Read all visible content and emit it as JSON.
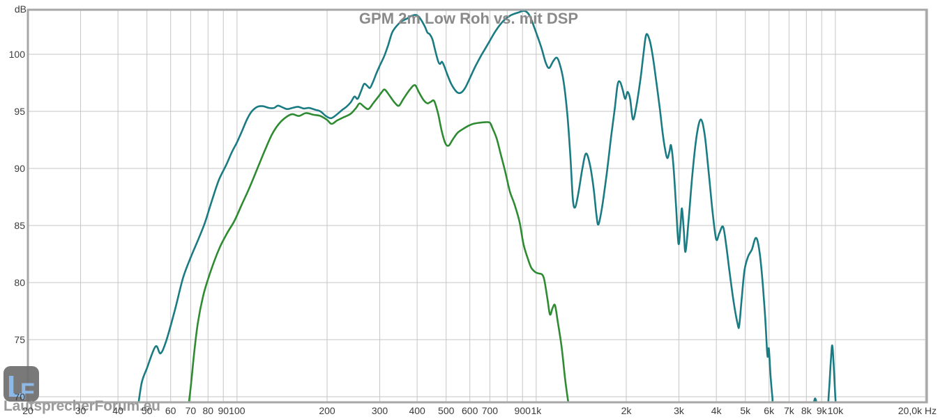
{
  "chart_data": {
    "type": "line",
    "title": "GPM 2m Low Roh vs. mit DSP",
    "ylabel": "dB",
    "xlabel": "Hz",
    "x_scale": "log",
    "x_range_hz": [
      20,
      20000
    ],
    "y_range_db": [
      69.5,
      104
    ],
    "grid": true,
    "legend_position": "none",
    "y_ticks_db": [
      100,
      95,
      90,
      85,
      80,
      75,
      70
    ],
    "x_ticks": [
      {
        "label": "20",
        "hz": 20
      },
      {
        "label": "30",
        "hz": 30
      },
      {
        "label": "40",
        "hz": 40
      },
      {
        "label": "50",
        "hz": 50
      },
      {
        "label": "60",
        "hz": 60
      },
      {
        "label": "70",
        "hz": 70
      },
      {
        "label": "80",
        "hz": 80
      },
      {
        "label": "90",
        "hz": 90
      },
      {
        "label": "100",
        "hz": 100
      },
      {
        "label": "200",
        "hz": 200
      },
      {
        "label": "300",
        "hz": 300
      },
      {
        "label": "400",
        "hz": 400
      },
      {
        "label": "500",
        "hz": 500
      },
      {
        "label": "600",
        "hz": 600
      },
      {
        "label": "700",
        "hz": 700
      },
      {
        "label": "900",
        "hz": 900
      },
      {
        "label": "1k",
        "hz": 1000
      },
      {
        "label": "2k",
        "hz": 2000
      },
      {
        "label": "3k",
        "hz": 3000
      },
      {
        "label": "4k",
        "hz": 4000
      },
      {
        "label": "5k",
        "hz": 5000
      },
      {
        "label": "6k",
        "hz": 6000
      },
      {
        "label": "7k",
        "hz": 7000
      },
      {
        "label": "8k",
        "hz": 8000
      },
      {
        "label": "9k",
        "hz": 9000
      },
      {
        "label": "10k",
        "hz": 10000
      },
      {
        "label": "20,0k Hz",
        "hz": 20000
      }
    ],
    "grid_freqs_hz": [
      20,
      30,
      40,
      50,
      60,
      70,
      80,
      90,
      100,
      200,
      300,
      400,
      500,
      600,
      700,
      800,
      900,
      1000,
      2000,
      3000,
      4000,
      5000,
      6000,
      7000,
      8000,
      9000,
      10000,
      20000
    ],
    "series": [
      {
        "id": "teal",
        "color": "#1a7b83",
        "points_hz_db": [
          [
            46.5,
            68.8
          ],
          [
            48,
            71.2
          ],
          [
            50,
            72.5
          ],
          [
            53.4,
            74.4
          ],
          [
            55.5,
            73.8
          ],
          [
            58,
            74.9
          ],
          [
            62,
            77.6
          ],
          [
            66,
            80.4
          ],
          [
            70,
            82.2
          ],
          [
            74,
            83.7
          ],
          [
            78,
            85.2
          ],
          [
            82,
            87.0
          ],
          [
            87,
            89.0
          ],
          [
            92,
            90.3
          ],
          [
            96,
            91.4
          ],
          [
            100,
            92.3
          ],
          [
            104,
            93.3
          ],
          [
            108,
            94.3
          ],
          [
            112,
            95.0
          ],
          [
            117,
            95.4
          ],
          [
            122,
            95.45
          ],
          [
            128,
            95.3
          ],
          [
            133,
            95.3
          ],
          [
            137,
            95.5
          ],
          [
            142,
            95.35
          ],
          [
            147,
            95.2
          ],
          [
            153,
            95.3
          ],
          [
            160,
            95.4
          ],
          [
            167,
            95.25
          ],
          [
            174,
            95.3
          ],
          [
            182,
            95.15
          ],
          [
            190,
            95.0
          ],
          [
            198,
            94.6
          ],
          [
            206,
            94.4
          ],
          [
            215,
            94.7
          ],
          [
            224,
            95.1
          ],
          [
            232,
            95.4
          ],
          [
            240,
            95.8
          ],
          [
            247,
            96.3
          ],
          [
            253,
            96.1
          ],
          [
            260,
            96.8
          ],
          [
            266,
            97.4
          ],
          [
            272,
            97.25
          ],
          [
            278,
            97.05
          ],
          [
            284,
            97.5
          ],
          [
            292,
            98.3
          ],
          [
            300,
            99.0
          ],
          [
            310,
            99.8
          ],
          [
            320,
            100.8
          ],
          [
            330,
            101.9
          ],
          [
            342,
            102.5
          ],
          [
            355,
            102.9
          ],
          [
            368,
            103.1
          ],
          [
            382,
            103.35
          ],
          [
            395,
            103.45
          ],
          [
            405,
            103.3
          ],
          [
            415,
            102.9
          ],
          [
            425,
            102.4
          ],
          [
            433,
            101.9
          ],
          [
            441,
            101.75
          ],
          [
            450,
            101.3
          ],
          [
            460,
            100.3
          ],
          [
            470,
            99.4
          ],
          [
            477,
            99.15
          ],
          [
            484,
            99.35
          ],
          [
            492,
            99.0
          ],
          [
            505,
            98.2
          ],
          [
            520,
            97.4
          ],
          [
            538,
            96.8
          ],
          [
            552,
            96.6
          ],
          [
            565,
            96.7
          ],
          [
            580,
            97.1
          ],
          [
            600,
            97.9
          ],
          [
            625,
            98.9
          ],
          [
            655,
            99.9
          ],
          [
            690,
            100.9
          ],
          [
            730,
            102.0
          ],
          [
            775,
            102.9
          ],
          [
            820,
            103.4
          ],
          [
            870,
            103.65
          ],
          [
            915,
            103.8
          ],
          [
            950,
            103.4
          ],
          [
            990,
            102.2
          ],
          [
            1040,
            100.6
          ],
          [
            1075,
            99.3
          ],
          [
            1104,
            98.8
          ],
          [
            1140,
            99.4
          ],
          [
            1172,
            99.7
          ],
          [
            1200,
            99.1
          ],
          [
            1235,
            97.6
          ],
          [
            1270,
            94.8
          ],
          [
            1300,
            91.2
          ],
          [
            1326,
            87.3
          ],
          [
            1350,
            86.6
          ],
          [
            1385,
            87.9
          ],
          [
            1425,
            89.9
          ],
          [
            1466,
            91.3
          ],
          [
            1510,
            90.4
          ],
          [
            1555,
            88.3
          ],
          [
            1590,
            85.9
          ],
          [
            1615,
            85.1
          ],
          [
            1660,
            86.6
          ],
          [
            1720,
            89.5
          ],
          [
            1780,
            92.8
          ],
          [
            1830,
            95.2
          ],
          [
            1870,
            97.3
          ],
          [
            1905,
            97.6
          ],
          [
            1945,
            96.9
          ],
          [
            1983,
            96.1
          ],
          [
            2020,
            96.7
          ],
          [
            2060,
            96.1
          ],
          [
            2105,
            94.3
          ],
          [
            2160,
            95.4
          ],
          [
            2230,
            97.8
          ],
          [
            2280,
            99.9
          ],
          [
            2330,
            101.7
          ],
          [
            2390,
            101.3
          ],
          [
            2450,
            99.9
          ],
          [
            2520,
            97.6
          ],
          [
            2590,
            95.2
          ],
          [
            2650,
            93.0
          ],
          [
            2700,
            91.6
          ],
          [
            2745,
            90.9
          ],
          [
            2790,
            91.5
          ],
          [
            2825,
            92.0
          ],
          [
            2880,
            90.0
          ],
          [
            2935,
            86.6
          ],
          [
            2990,
            83.4
          ],
          [
            3035,
            84.9
          ],
          [
            3070,
            86.5
          ],
          [
            3115,
            84.5
          ],
          [
            3155,
            82.7
          ],
          [
            3230,
            85.4
          ],
          [
            3330,
            89.6
          ],
          [
            3440,
            92.9
          ],
          [
            3550,
            94.3
          ],
          [
            3660,
            92.9
          ],
          [
            3780,
            89.4
          ],
          [
            3890,
            86.1
          ],
          [
            3995,
            83.8
          ],
          [
            4090,
            84.3
          ],
          [
            4210,
            84.9
          ],
          [
            4310,
            83.4
          ],
          [
            4430,
            80.9
          ],
          [
            4570,
            78.3
          ],
          [
            4710,
            76.4
          ],
          [
            4770,
            76.2
          ],
          [
            4860,
            78.5
          ],
          [
            4970,
            81.1
          ],
          [
            5110,
            82.3
          ],
          [
            5260,
            82.9
          ],
          [
            5410,
            83.9
          ],
          [
            5530,
            83.3
          ],
          [
            5660,
            81.2
          ],
          [
            5810,
            77.4
          ],
          [
            5915,
            73.9
          ],
          [
            5955,
            73.6
          ],
          [
            5995,
            74.2
          ],
          [
            6070,
            71.9
          ],
          [
            6160,
            69.9
          ],
          [
            6240,
            68.6
          ],
          [
            7200,
            68.0
          ],
          [
            8300,
            68.8
          ],
          [
            8450,
            69.4
          ],
          [
            8560,
            69.85
          ],
          [
            8680,
            69.3
          ],
          [
            8800,
            68.7
          ],
          [
            9350,
            68.6
          ],
          [
            9520,
            70.5
          ],
          [
            9650,
            73.0
          ],
          [
            9760,
            74.5
          ],
          [
            9870,
            72.8
          ],
          [
            9980,
            70.3
          ],
          [
            10080,
            68.5
          ]
        ]
      },
      {
        "id": "green",
        "color": "#2e8b32",
        "points_hz_db": [
          [
            68.5,
            68.8
          ],
          [
            70,
            70.8
          ],
          [
            72,
            74.0
          ],
          [
            74,
            76.5
          ],
          [
            77,
            78.8
          ],
          [
            80,
            80.3
          ],
          [
            84,
            81.9
          ],
          [
            88,
            83.2
          ],
          [
            93,
            84.4
          ],
          [
            98,
            85.4
          ],
          [
            104,
            86.9
          ],
          [
            110,
            88.3
          ],
          [
            117,
            90.0
          ],
          [
            124,
            91.6
          ],
          [
            131,
            93.0
          ],
          [
            138,
            93.9
          ],
          [
            146,
            94.5
          ],
          [
            153,
            94.75
          ],
          [
            161,
            94.6
          ],
          [
            170,
            94.85
          ],
          [
            180,
            94.7
          ],
          [
            190,
            94.6
          ],
          [
            200,
            94.25
          ],
          [
            207,
            93.9
          ],
          [
            216,
            94.2
          ],
          [
            228,
            94.5
          ],
          [
            240,
            94.8
          ],
          [
            250,
            95.3
          ],
          [
            257,
            95.7
          ],
          [
            266,
            95.4
          ],
          [
            275,
            95.2
          ],
          [
            285,
            95.7
          ],
          [
            297,
            96.3
          ],
          [
            305,
            96.7
          ],
          [
            312,
            96.9
          ],
          [
            325,
            96.3
          ],
          [
            338,
            95.7
          ],
          [
            348,
            95.5
          ],
          [
            360,
            96.1
          ],
          [
            378,
            96.9
          ],
          [
            393,
            97.3
          ],
          [
            405,
            96.7
          ],
          [
            420,
            96.0
          ],
          [
            433,
            95.7
          ],
          [
            445,
            95.85
          ],
          [
            456,
            95.9
          ],
          [
            470,
            94.8
          ],
          [
            483,
            93.3
          ],
          [
            497,
            92.2
          ],
          [
            510,
            92.0
          ],
          [
            525,
            92.5
          ],
          [
            545,
            93.1
          ],
          [
            565,
            93.4
          ],
          [
            590,
            93.7
          ],
          [
            615,
            93.9
          ],
          [
            645,
            94.0
          ],
          [
            675,
            94.05
          ],
          [
            700,
            94.0
          ],
          [
            715,
            93.5
          ],
          [
            738,
            92.6
          ],
          [
            762,
            91.2
          ],
          [
            790,
            89.6
          ],
          [
            816,
            88.0
          ],
          [
            845,
            86.9
          ],
          [
            880,
            85.3
          ],
          [
            906,
            83.4
          ],
          [
            935,
            82.2
          ],
          [
            963,
            81.3
          ],
          [
            995,
            80.9
          ],
          [
            1020,
            80.8
          ],
          [
            1047,
            80.7
          ],
          [
            1065,
            80.2
          ],
          [
            1090,
            78.6
          ],
          [
            1112,
            77.2
          ],
          [
            1135,
            77.8
          ],
          [
            1156,
            78.0
          ],
          [
            1180,
            76.6
          ],
          [
            1217,
            74.3
          ],
          [
            1250,
            71.5
          ],
          [
            1282,
            69.4
          ],
          [
            1300,
            68.5
          ]
        ]
      }
    ]
  },
  "watermark": {
    "logo_letter_l": "L",
    "logo_letter_f": "F",
    "site": "LautsprecherForum.eu",
    "logo_bg": "#6f6f6f",
    "logo_color": "#8db9e8",
    "text_color": "#9a9a9a"
  }
}
